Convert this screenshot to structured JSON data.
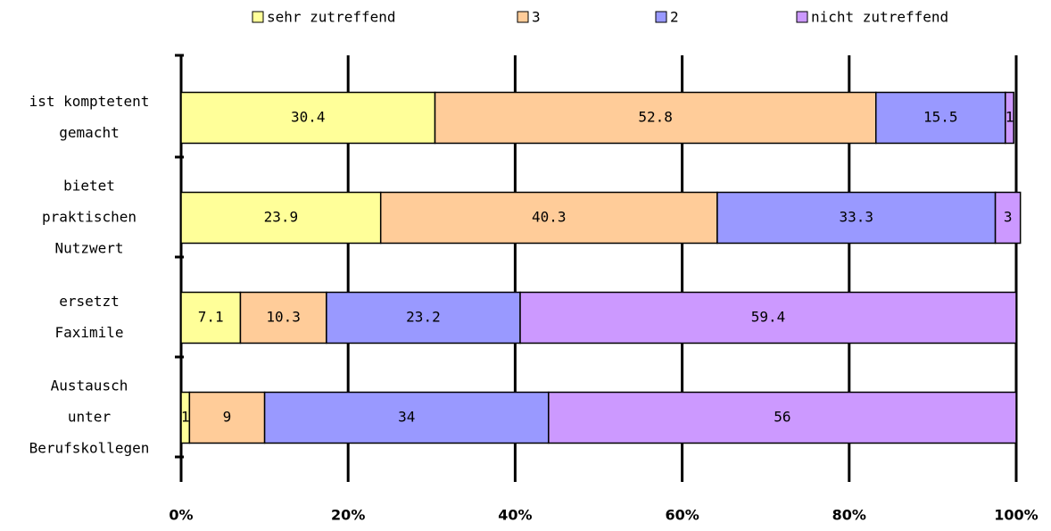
{
  "chart_data": {
    "type": "stacked-bar-horizontal",
    "categories": [
      [
        "ist komptetent",
        "gemacht"
      ],
      [
        "bietet",
        "praktischen",
        "Nutzwert"
      ],
      [
        "ersetzt",
        "Faximile"
      ],
      [
        "Austausch",
        "unter",
        "Berufskollegen"
      ]
    ],
    "series": [
      {
        "name": "sehr zutreffend",
        "color": "#ffff99",
        "values": [
          30.4,
          23.9,
          7.1,
          1
        ]
      },
      {
        "name": "3",
        "color": "#ffcc99",
        "values": [
          52.8,
          40.3,
          10.3,
          9
        ]
      },
      {
        "name": "2",
        "color": "#9999ff",
        "values": [
          15.5,
          33.3,
          23.2,
          34
        ]
      },
      {
        "name": "nicht zutreffend",
        "color": "#cc99ff",
        "values": [
          1,
          3,
          59.4,
          56
        ]
      }
    ],
    "xlim": [
      0,
      100
    ],
    "xticks": [
      {
        "value": 0,
        "label": "0%"
      },
      {
        "value": 20,
        "label": "20%"
      },
      {
        "value": 40,
        "label": "40%"
      },
      {
        "value": 60,
        "label": "60%"
      },
      {
        "value": 80,
        "label": "80%"
      },
      {
        "value": 100,
        "label": "100%"
      }
    ],
    "grid": true
  }
}
